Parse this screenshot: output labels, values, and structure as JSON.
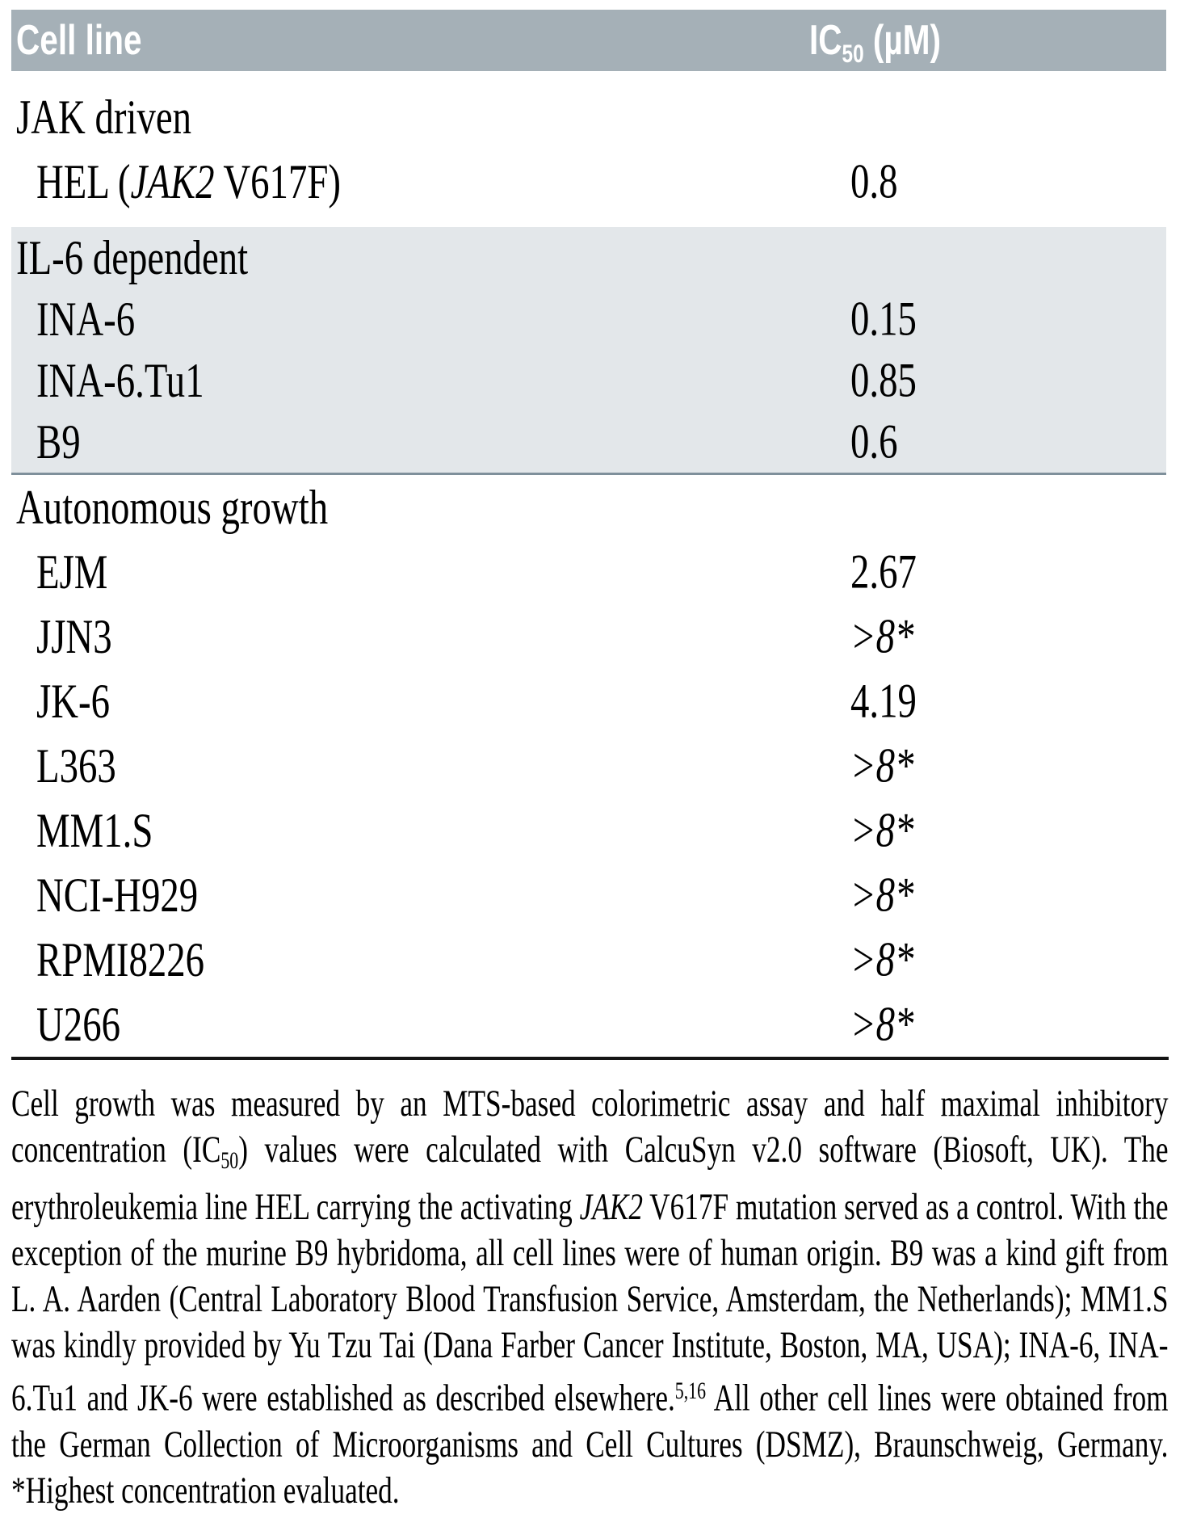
{
  "header": {
    "cell_line_label": "Cell line",
    "ic50_label_segments": [
      {
        "t": "IC"
      },
      {
        "t": "50",
        "s": "sub"
      },
      {
        "t": " (µM)"
      }
    ]
  },
  "table": {
    "rows": [
      {
        "kind": "section",
        "label": "JAK driven"
      },
      {
        "kind": "data",
        "label_segments": [
          {
            "t": "HEL ("
          },
          {
            "t": "JAK2",
            "s": "italic"
          },
          {
            "t": " V617F)"
          }
        ],
        "value": "0.8"
      },
      {
        "kind": "section",
        "label": "IL-6 dependent",
        "shaded": true,
        "group_start": true
      },
      {
        "kind": "data",
        "label": "INA-6",
        "value": "0.15",
        "shaded": true
      },
      {
        "kind": "data",
        "label": "INA-6.Tu1",
        "value": "0.85",
        "shaded": true
      },
      {
        "kind": "data",
        "label": "B9",
        "value": "0.6",
        "shaded": true,
        "group_end": true
      },
      {
        "kind": "section",
        "label": "Autonomous growth"
      },
      {
        "kind": "data",
        "label": "EJM",
        "value": "2.67"
      },
      {
        "kind": "data",
        "label": "JJN3",
        "value": ">8*",
        "value_italic": true
      },
      {
        "kind": "data",
        "label": "JK-6",
        "value": "4.19"
      },
      {
        "kind": "data",
        "label": "L363",
        "value": ">8*",
        "value_italic": true
      },
      {
        "kind": "data",
        "label": "MM1.S",
        "value": ">8*",
        "value_italic": true
      },
      {
        "kind": "data",
        "label": "NCI-H929",
        "value": ">8*",
        "value_italic": true
      },
      {
        "kind": "data",
        "label": "RPMI8226",
        "value": ">8*",
        "value_italic": true
      },
      {
        "kind": "data",
        "label": "U266",
        "value": ">8*",
        "value_italic": true
      }
    ]
  },
  "chart_data": {
    "type": "table",
    "title": "IC50 (µM) by cell line",
    "columns": [
      "Cell line",
      "IC50 (µM)"
    ],
    "groups": [
      {
        "group": "JAK driven",
        "rows": [
          [
            "HEL (JAK2 V617F)",
            "0.8"
          ]
        ]
      },
      {
        "group": "IL-6 dependent",
        "rows": [
          [
            "INA-6",
            "0.15"
          ],
          [
            "INA-6.Tu1",
            "0.85"
          ],
          [
            "B9",
            "0.6"
          ]
        ]
      },
      {
        "group": "Autonomous growth",
        "rows": [
          [
            "EJM",
            "2.67"
          ],
          [
            "JJN3",
            ">8*"
          ],
          [
            "JK-6",
            "4.19"
          ],
          [
            "L363",
            ">8*"
          ],
          [
            "MM1.S",
            ">8*"
          ],
          [
            "NCI-H929",
            ">8*"
          ],
          [
            "RPMI8226",
            ">8*"
          ],
          [
            "U266",
            ">8*"
          ]
        ]
      }
    ]
  },
  "footnote": {
    "segments": [
      {
        "t": "Cell growth was measured by an MTS-based colorimetric assay and half maximal inhibitory concentration (IC"
      },
      {
        "t": "50",
        "s": "sub"
      },
      {
        "t": ") values were calculated with CalcuSyn v2.0 software (Biosoft, UK). The erythroleukemia line HEL carrying the activating "
      },
      {
        "t": "JAK2",
        "s": "italic"
      },
      {
        "t": " V617F mutation served as a control. With the exception of the murine B9 hybridoma, all cell lines were of human origin. B9 was a kind gift from L. A. Aarden (Central Laboratory Blood Transfusion Service, Amsterdam, the Netherlands); MM1.S was kindly provided by Yu Tzu Tai (Dana Farber Cancer Institute, Boston, MA, USA); INA-6, INA-6.Tu1 and JK-6 were established as described elsewhere."
      },
      {
        "t": "5,16",
        "s": "sup"
      },
      {
        "t": " All other cell lines were obtained from the German Collection of Microorganisms and Cell Cultures (DSMZ), Braunschweig, Germany. *Highest concentration evaluated."
      }
    ]
  },
  "colors": {
    "header_bg": "#a5b0b7",
    "shaded_bg": "#e3e7ea",
    "group_border": "#7f909b",
    "rule": "#141414",
    "header_text": "#ffffff"
  }
}
